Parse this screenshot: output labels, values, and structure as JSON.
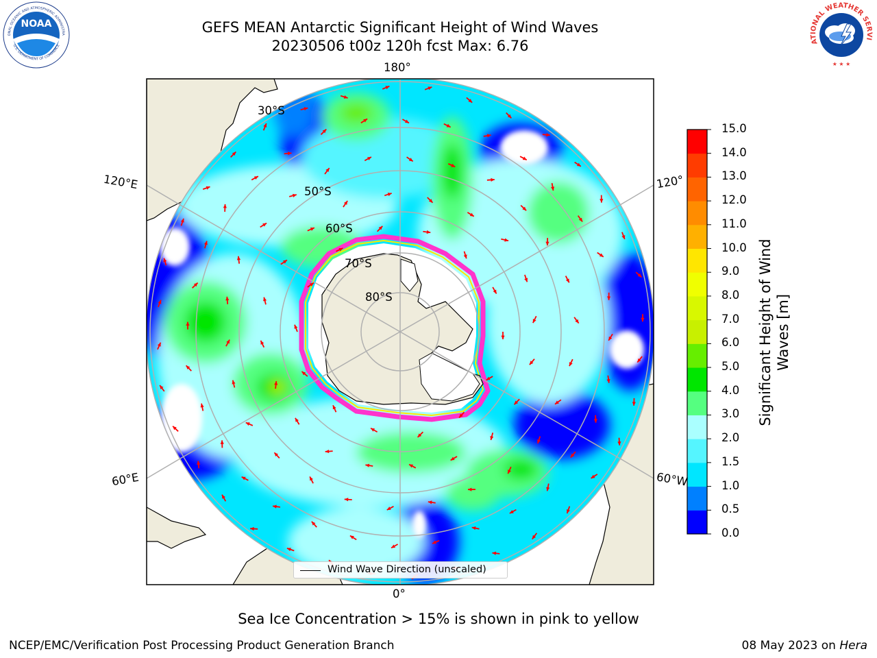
{
  "header": {
    "title_line1": "GEFS MEAN Antarctic Significant Height of Wind Waves",
    "title_line2": "20230506 t00z 120h fcst   Max: 6.76"
  },
  "logos": {
    "noaa": "NOAA",
    "noaa_ring": "NATIONAL OCEANIC AND ATMOSPHERIC ADMINISTRATION",
    "noaa_ring_bottom": "U.S. DEPARTMENT OF COMMERCE",
    "nws_ring": "NATIONAL WEATHER SERVICE"
  },
  "map": {
    "projection": "south-polar stereographic",
    "meridian_labels": {
      "top": "180°",
      "bottom": "0°",
      "upper_left": "120°E",
      "upper_right": "120°",
      "lower_left": "60°E",
      "lower_right": "60°W"
    },
    "parallel_labels": [
      "30°S",
      "50°S",
      "60°S",
      "70°S",
      "80°S"
    ],
    "legend_label": "Wind Wave Direction (unscaled)",
    "arrow_color": "#ff0000",
    "ice_edge_color": "#ff33cc",
    "land_color": "#efecdc",
    "ocean_mask_color": "#ffffff"
  },
  "colorbar": {
    "title": "Significant Height of Wind Waves [m]",
    "title_line1": "Significant Height of Wind",
    "title_line2": "Waves [m]",
    "ticks": [
      "0.0",
      "0.5",
      "1.0",
      "1.5",
      "2.0",
      "3.0",
      "4.0",
      "5.0",
      "6.0",
      "7.0",
      "8.0",
      "9.0",
      "10.0",
      "11.0",
      "12.0",
      "13.0",
      "14.0",
      "15.0"
    ],
    "bins": [
      {
        "from": 0.0,
        "to": 0.5,
        "color": "#0000ff"
      },
      {
        "from": 0.5,
        "to": 1.0,
        "color": "#0080ff"
      },
      {
        "from": 1.0,
        "to": 1.5,
        "color": "#00e6ff"
      },
      {
        "from": 1.5,
        "to": 2.0,
        "color": "#55f5ff"
      },
      {
        "from": 2.0,
        "to": 3.0,
        "color": "#aaffff"
      },
      {
        "from": 3.0,
        "to": 4.0,
        "color": "#55ff80"
      },
      {
        "from": 4.0,
        "to": 5.0,
        "color": "#00e600"
      },
      {
        "from": 5.0,
        "to": 6.0,
        "color": "#66ee00"
      },
      {
        "from": 6.0,
        "to": 7.0,
        "color": "#c8f000"
      },
      {
        "from": 7.0,
        "to": 8.0,
        "color": "#d8f800"
      },
      {
        "from": 8.0,
        "to": 9.0,
        "color": "#f0ff00"
      },
      {
        "from": 9.0,
        "to": 10.0,
        "color": "#ffe600"
      },
      {
        "from": 10.0,
        "to": 11.0,
        "color": "#ffb000"
      },
      {
        "from": 11.0,
        "to": 12.0,
        "color": "#ff8c00"
      },
      {
        "from": 12.0,
        "to": 13.0,
        "color": "#ff6400"
      },
      {
        "from": 13.0,
        "to": 14.0,
        "color": "#ff3c00"
      },
      {
        "from": 14.0,
        "to": 15.0,
        "color": "#ff0000"
      }
    ],
    "range": [
      0,
      15
    ]
  },
  "caption": "Sea Ice Concentration > 15% is shown in pink to yellow",
  "footer": {
    "left": "NCEP/EMC/Verification Post Processing Product Generation Branch",
    "right_prefix": "08 May 2023 on ",
    "right_host": "Hera"
  }
}
